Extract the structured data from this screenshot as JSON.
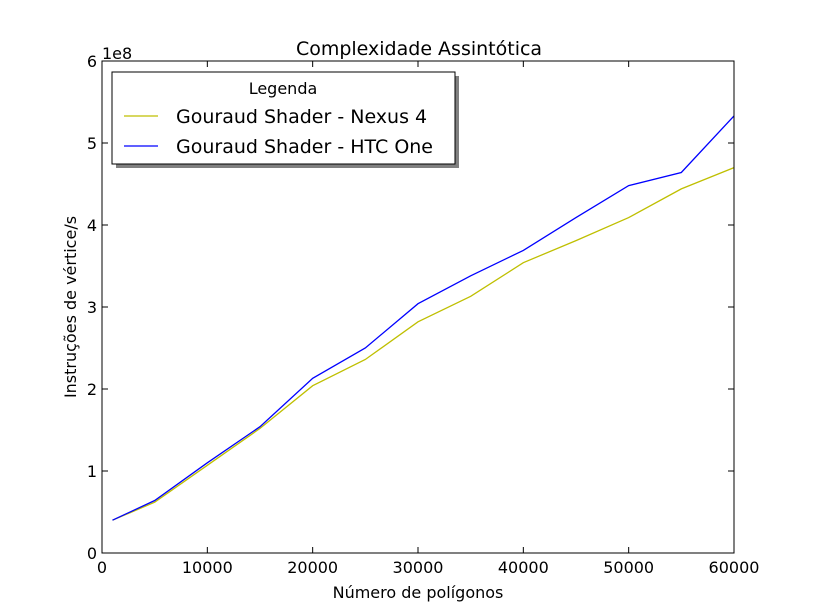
{
  "chart_data": {
    "type": "line",
    "title": "Complexidade Assintótica",
    "xlabel": "Número de polígonos",
    "ylabel": "Instruções de vértice/s",
    "y_offset_label": "1e8",
    "xlim": [
      0,
      60000
    ],
    "ylim": [
      0,
      6
    ],
    "y_scale_multiplier": 100000000,
    "xticks": [
      0,
      10000,
      20000,
      30000,
      40000,
      50000,
      60000
    ],
    "xtick_labels": [
      "0",
      "10000",
      "20000",
      "30000",
      "40000",
      "50000",
      "60000"
    ],
    "yticks": [
      0,
      1,
      2,
      3,
      4,
      5,
      6
    ],
    "ytick_labels": [
      "0",
      "1",
      "2",
      "3",
      "4",
      "5",
      "6"
    ],
    "grid": false,
    "legend": {
      "title": "Legenda",
      "placement": "top-left"
    },
    "x": [
      1000,
      5000,
      10000,
      15000,
      20000,
      25000,
      30000,
      35000,
      40000,
      45000,
      50000,
      55000,
      60000
    ],
    "series": [
      {
        "name": "Gouraud Shader - Nexus 4",
        "color": "#bfbf00",
        "values": [
          0.4,
          0.62,
          1.07,
          1.52,
          2.04,
          2.36,
          2.82,
          3.13,
          3.54,
          3.81,
          4.09,
          4.44,
          4.7
        ]
      },
      {
        "name": "Gouraud Shader - HTC One",
        "color": "#0000ff",
        "values": [
          0.4,
          0.64,
          1.1,
          1.54,
          2.13,
          2.5,
          3.04,
          3.38,
          3.69,
          4.09,
          4.48,
          4.64,
          5.33
        ]
      }
    ]
  }
}
